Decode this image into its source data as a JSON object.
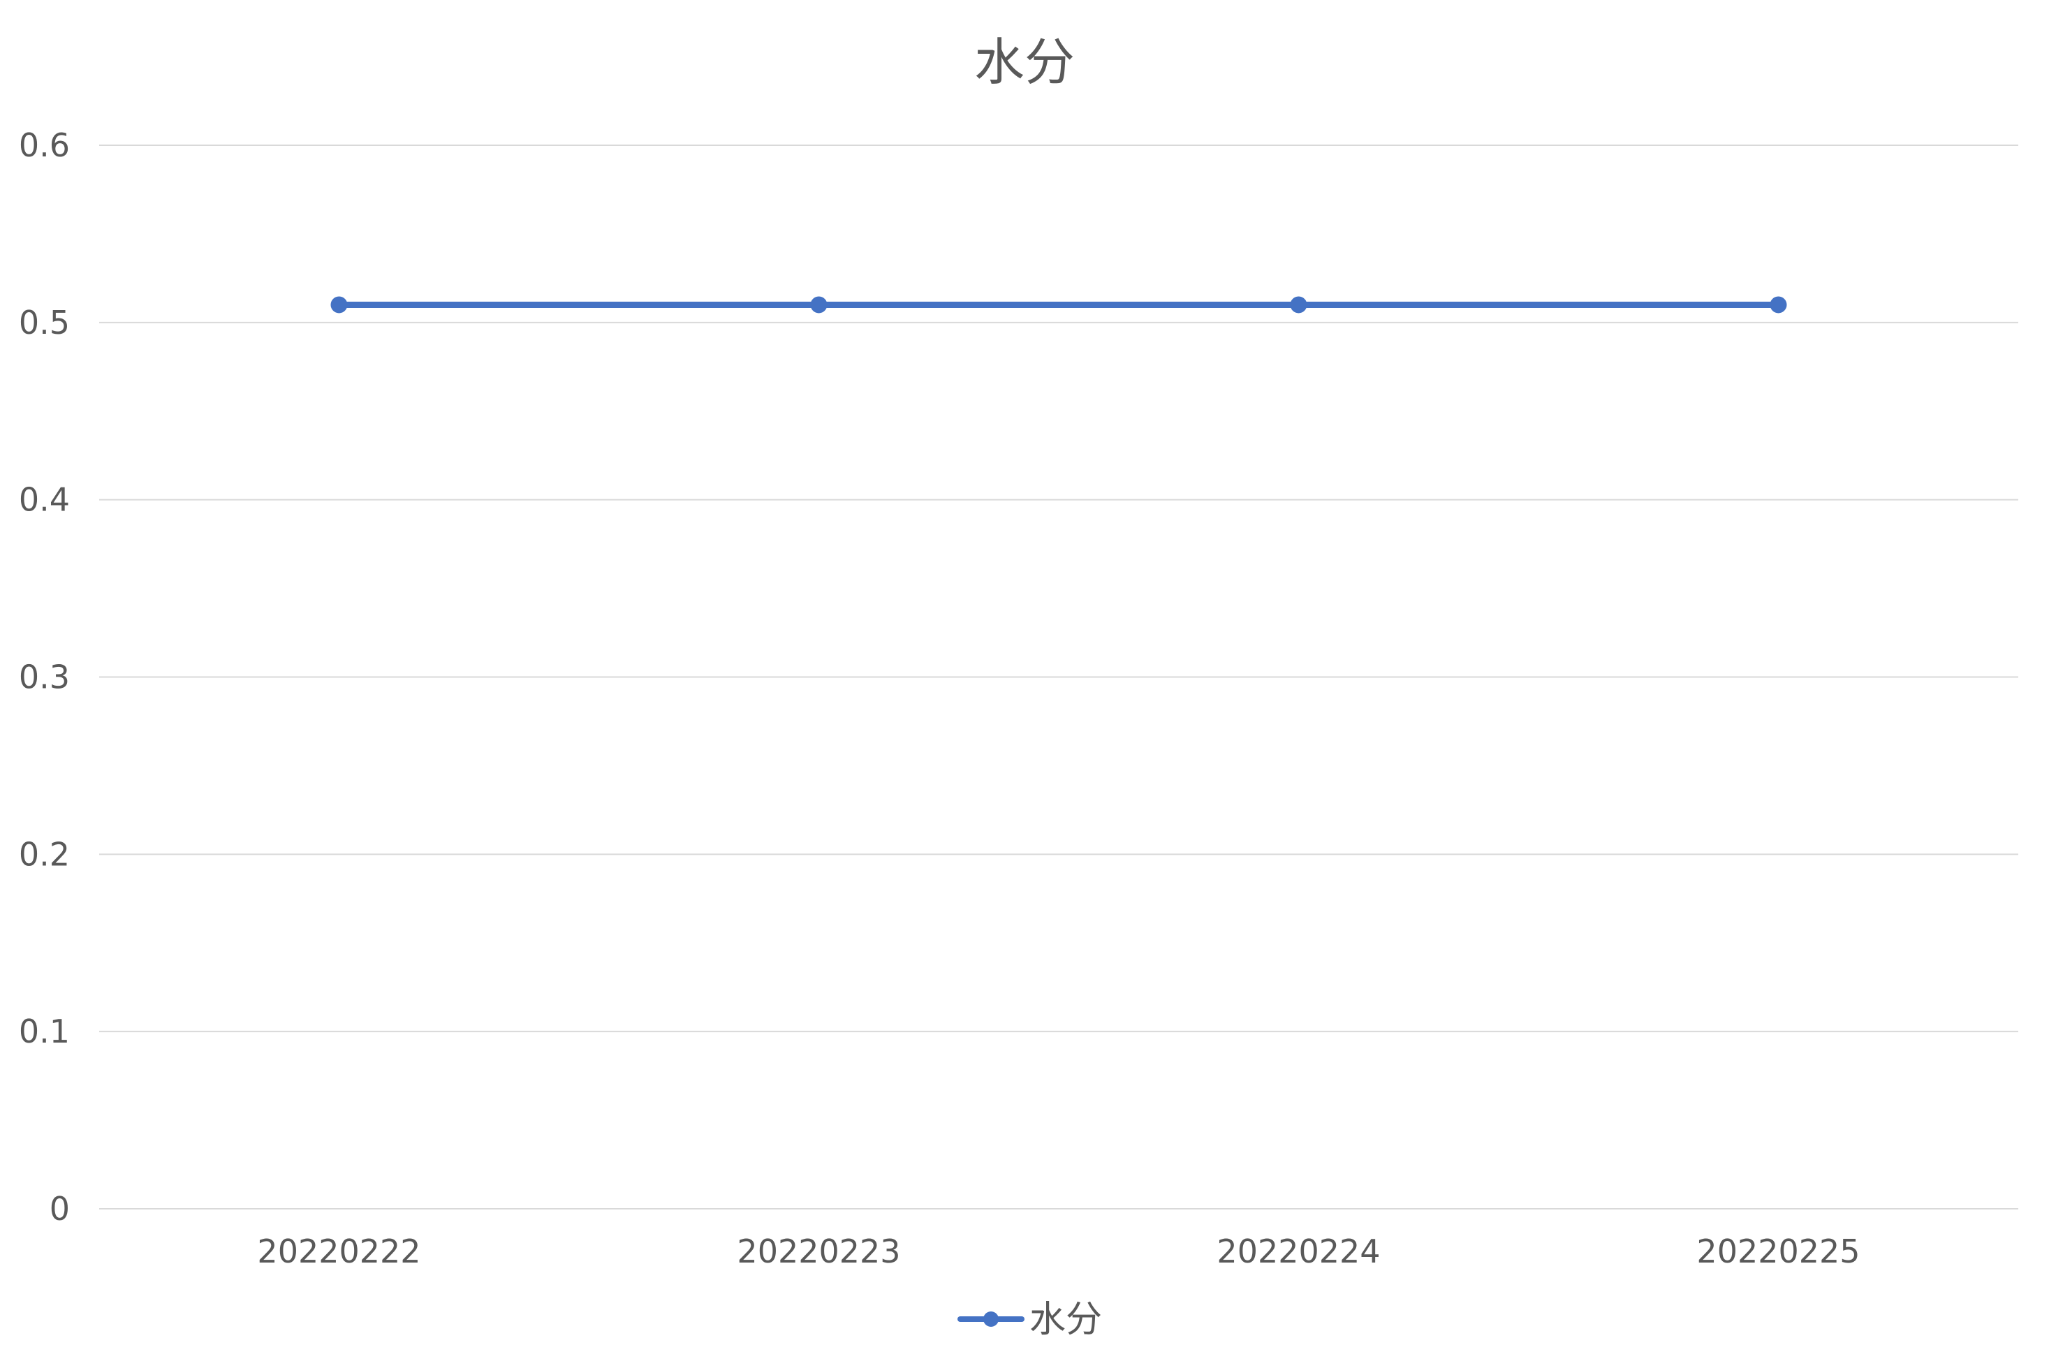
{
  "chart_data": {
    "type": "line",
    "title": "水分",
    "xlabel": "",
    "ylabel": "",
    "categories": [
      "20220222",
      "20220223",
      "20220224",
      "20220225"
    ],
    "series": [
      {
        "name": "水分",
        "values": [
          0.51,
          0.51,
          0.51,
          0.51
        ],
        "color": "#4472C4",
        "marker": "circle"
      }
    ],
    "ylim": [
      0,
      0.6
    ],
    "yticks": [
      "0",
      "0.1",
      "0.2",
      "0.3",
      "0.4",
      "0.5",
      "0.6"
    ],
    "grid": true,
    "legend": "bottom-center",
    "gridline_color": "#D9D9D9",
    "text_color": "#595959"
  }
}
